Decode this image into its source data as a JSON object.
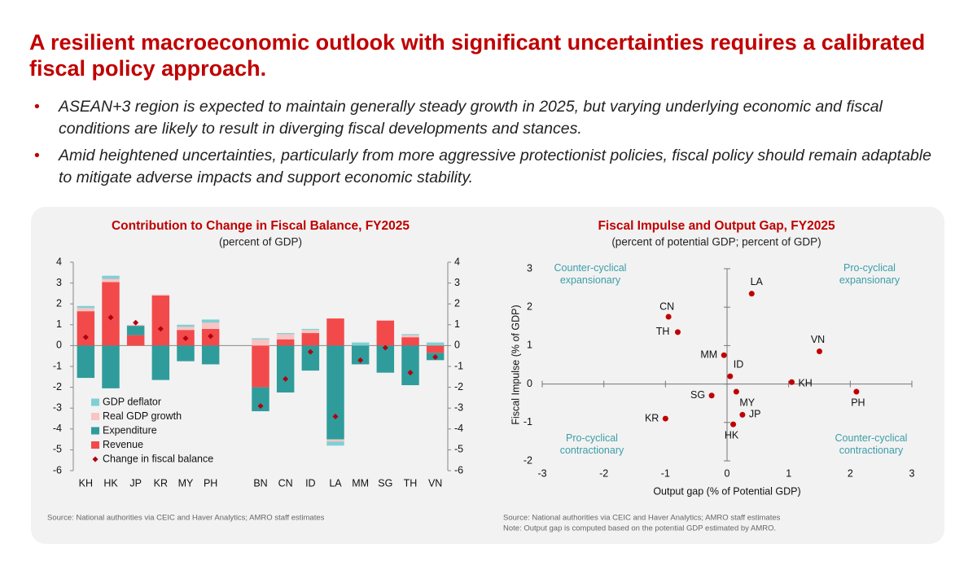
{
  "header": {
    "title": "A resilient macroeconomic outlook with significant uncertainties requires a calibrated fiscal policy approach.",
    "bullets": [
      "ASEAN+3 region is expected to maintain generally steady growth in 2025, but varying underlying economic and fiscal conditions are likely to result in diverging fiscal developments and stances.",
      "Amid heightened uncertainties, particularly from more aggressive protectionist policies, fiscal policy should remain adaptable to mitigate adverse impacts and support economic stability."
    ]
  },
  "chart_data": [
    {
      "type": "bar",
      "stacked": true,
      "title": "Contribution to Change in Fiscal Balance, FY2025",
      "subtitle": "(percent of GDP)",
      "categories": [
        "KH",
        "HK",
        "JP",
        "KR",
        "MY",
        "PH",
        null,
        "BN",
        "CN",
        "ID",
        "LA",
        "MM",
        "SG",
        "TH",
        "VN"
      ],
      "series": [
        {
          "name": "GDP deflator",
          "color": "#7fd0d3",
          "style": "bar",
          "values": [
            0.1,
            0.15,
            0,
            0,
            0.1,
            0.15,
            null,
            0.05,
            0.05,
            0.05,
            -0.2,
            0.15,
            0,
            0.05,
            0.15
          ]
        },
        {
          "name": "Real GDP growth",
          "color": "#f8c4c4",
          "style": "bar",
          "values": [
            0.15,
            0.15,
            0.05,
            0.05,
            0.15,
            0.3,
            null,
            0.3,
            0.25,
            0.15,
            -0.1,
            0,
            0,
            0.1,
            0
          ]
        },
        {
          "name": "Expenditure",
          "color": "#2f9c9b",
          "style": "bar",
          "values": [
            -1.55,
            -2.05,
            0.45,
            -1.65,
            -0.75,
            -0.9,
            null,
            -1.15,
            -2.25,
            -1.2,
            -4.5,
            -0.9,
            -1.3,
            -1.9,
            -0.35
          ]
        },
        {
          "name": "Revenue",
          "color": "#f24a4a",
          "style": "bar",
          "values": [
            1.65,
            3.05,
            0.5,
            2.4,
            0.75,
            0.8,
            null,
            -2.0,
            0.3,
            0.6,
            1.3,
            0,
            1.2,
            0.4,
            -0.35
          ]
        },
        {
          "name": "Change in fiscal balance",
          "color": "#b00010",
          "style": "marker",
          "values": [
            0.4,
            1.35,
            1.1,
            0.8,
            0.35,
            0.45,
            null,
            -2.9,
            -1.6,
            -0.3,
            -3.4,
            -0.7,
            -0.1,
            -1.3,
            -0.55
          ]
        }
      ],
      "ylim": [
        -6,
        4
      ],
      "yticks": [
        -6,
        -5,
        -4,
        -3,
        -2,
        -1,
        0,
        1,
        2,
        3,
        4
      ],
      "y2lim": [
        -6,
        4
      ],
      "y2ticks": [
        -6,
        -5,
        -4,
        -3,
        -2,
        -1,
        0,
        1,
        2,
        3,
        4
      ],
      "legend": "lower-left",
      "source": "Source: National authorities via CEIC and Haver Analytics; AMRO staff estimates"
    },
    {
      "type": "scatter",
      "title": "Fiscal Impulse and Output Gap, FY2025",
      "subtitle": "(percent of potential GDP; percent of GDP)",
      "xlabel": "Output gap (% of Potential GDP)",
      "ylabel": "Fiscal Impulse (% of GDP)",
      "color": "#c00000",
      "labels": [
        "CN",
        "TH",
        "LA",
        "MM",
        "ID",
        "VN",
        "KH",
        "PH",
        "SG",
        "MY",
        "JP",
        "KR",
        "HK"
      ],
      "x": [
        -0.95,
        -0.8,
        0.4,
        -0.05,
        0.05,
        1.5,
        1.05,
        2.1,
        -0.25,
        0.15,
        0.25,
        -1.0,
        0.1
      ],
      "values": [
        1.75,
        1.35,
        2.35,
        0.75,
        0.2,
        0.85,
        0.05,
        -0.2,
        -0.3,
        -0.2,
        -0.8,
        -0.9,
        -1.05
      ],
      "xlim": [
        -3,
        3
      ],
      "ylim": [
        -2,
        3
      ],
      "xticks": [
        -3,
        -2,
        -1,
        0,
        1,
        2,
        3
      ],
      "yticks": [
        -2,
        -1,
        0,
        1,
        2,
        3
      ],
      "annotations": [
        "Counter-cyclical expansionary",
        "Pro-cyclical expansionary",
        "Pro-cyclical contractionary",
        "Counter-cyclical contractionary"
      ],
      "source": "Source: National authorities via CEIC and Haver Analytics; AMRO staff estimates",
      "note": "Note: Output gap is computed based on the potential GDP estimated by AMRO."
    }
  ]
}
